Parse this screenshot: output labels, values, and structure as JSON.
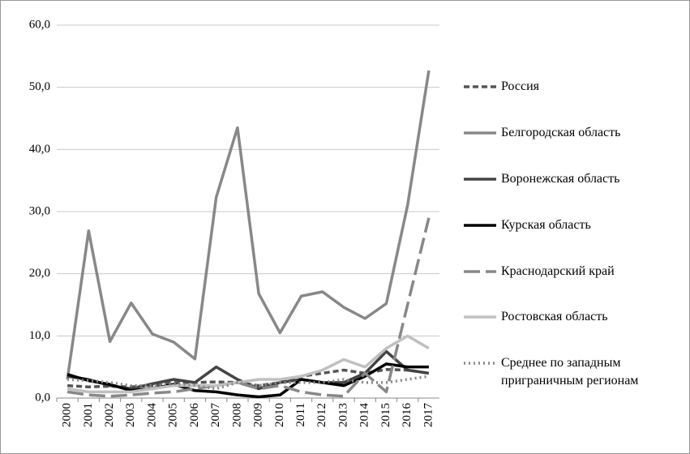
{
  "chart_data": {
    "type": "line",
    "categories": [
      "2000",
      "2001",
      "2002",
      "2003",
      "2004",
      "2005",
      "2006",
      "2007",
      "2008",
      "2009",
      "2010",
      "2011",
      "2012",
      "2013",
      "2014",
      "2015",
      "2016",
      "2017"
    ],
    "ylim": [
      0,
      60
    ],
    "yticks": [
      {
        "value": 0,
        "label": "0,0"
      },
      {
        "value": 10,
        "label": "10,0"
      },
      {
        "value": 20,
        "label": "20,0"
      },
      {
        "value": 30,
        "label": "30,0"
      },
      {
        "value": 40,
        "label": "40,0"
      },
      {
        "value": 50,
        "label": "50,0"
      },
      {
        "value": 60,
        "label": "60,0"
      }
    ],
    "grid": true,
    "legend": "right",
    "series": [
      {
        "name": "Россия",
        "color": "#555555",
        "dash": "dashed",
        "values": [
          2.0,
          1.8,
          1.9,
          1.8,
          2.0,
          2.5,
          2.5,
          2.6,
          2.5,
          2.0,
          2.5,
          3.5,
          4.0,
          4.5,
          4.0,
          4.6,
          4.5,
          4.0
        ]
      },
      {
        "name": "Белгородская область",
        "color": "#888888",
        "dash": "solid",
        "values": [
          3.0,
          26.9,
          9.1,
          15.3,
          10.3,
          9.0,
          6.3,
          32.3,
          43.5,
          16.8,
          10.5,
          16.4,
          17.1,
          14.6,
          12.8,
          15.2,
          31.0,
          52.7
        ]
      },
      {
        "name": "Воронежская область",
        "color": "#444444",
        "dash": "solid",
        "values": [
          3.5,
          3.0,
          2.0,
          1.5,
          2.3,
          3.0,
          2.5,
          5.0,
          3.0,
          1.5,
          2.5,
          3.0,
          2.5,
          2.5,
          4.0,
          7.5,
          4.5,
          4.0
        ]
      },
      {
        "name": "Курская область",
        "color": "#000000",
        "dash": "solid",
        "values": [
          3.8,
          2.8,
          2.2,
          1.2,
          1.5,
          2.2,
          1.2,
          1.0,
          0.5,
          0.2,
          0.5,
          3.0,
          2.5,
          2.0,
          3.5,
          5.5,
          5.0,
          5.0
        ]
      },
      {
        "name": "Краснодарский край",
        "color": "#888888",
        "dash": "longdash",
        "values": [
          1.0,
          0.5,
          0.3,
          0.5,
          0.8,
          1.0,
          1.5,
          2.0,
          2.5,
          1.5,
          2.0,
          1.0,
          0.5,
          0.3,
          4.0,
          1.0,
          15.0,
          29.0
        ]
      },
      {
        "name": "Ростовская область",
        "color": "#c0c0c0",
        "dash": "solid",
        "values": [
          1.5,
          1.0,
          1.0,
          1.0,
          1.5,
          2.0,
          2.0,
          2.0,
          2.5,
          3.0,
          3.0,
          3.5,
          4.5,
          6.2,
          5.0,
          8.0,
          10.0,
          8.0
        ]
      },
      {
        "name": "Среднее по западным приграничным регионам",
        "color": "#888888",
        "dash": "dotted",
        "values": [
          3.0,
          2.8,
          2.5,
          2.0,
          2.0,
          2.3,
          2.0,
          1.5,
          2.5,
          2.0,
          2.5,
          2.5,
          2.5,
          3.0,
          2.5,
          2.5,
          3.0,
          3.5
        ]
      }
    ]
  }
}
